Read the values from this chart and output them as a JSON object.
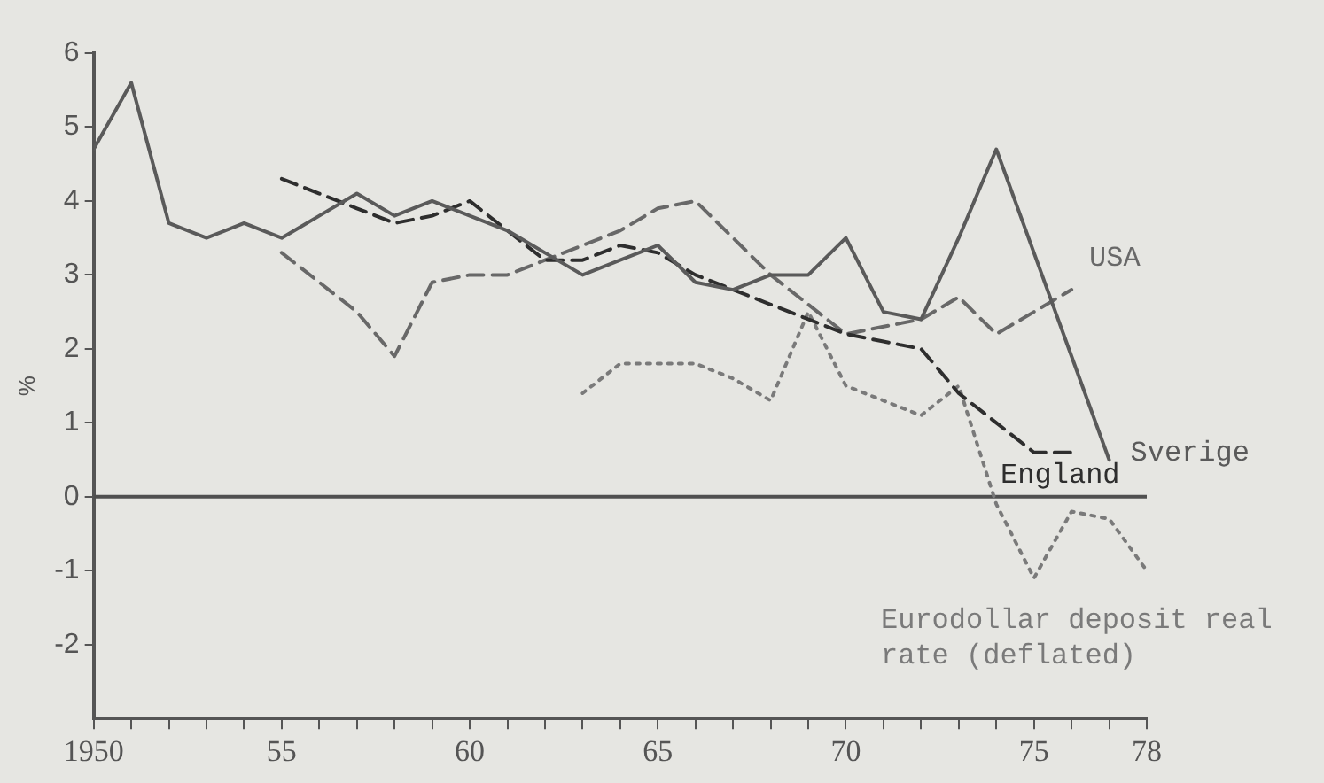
{
  "chart_data": {
    "type": "line",
    "ylabel": "%",
    "x": [
      1950,
      1951,
      1952,
      1953,
      1954,
      1955,
      1956,
      1957,
      1958,
      1959,
      1960,
      1961,
      1962,
      1963,
      1964,
      1965,
      1966,
      1967,
      1968,
      1969,
      1970,
      1971,
      1972,
      1973,
      1974,
      1975,
      1976,
      1977,
      1978
    ],
    "series": [
      {
        "name": "Sverige",
        "color": "#5a5a5a",
        "line_style": "solid",
        "values": [
          4.7,
          5.6,
          3.7,
          3.5,
          3.7,
          3.5,
          3.8,
          4.1,
          3.8,
          4.0,
          3.8,
          3.6,
          3.3,
          3.0,
          3.2,
          3.4,
          2.9,
          2.8,
          3.0,
          3.0,
          3.5,
          2.5,
          2.4,
          3.5,
          4.7,
          3.3,
          1.9,
          0.5,
          null
        ]
      },
      {
        "name": "England",
        "color": "#2e2e2e",
        "line_style": "dashed",
        "values": [
          null,
          null,
          null,
          null,
          null,
          4.3,
          4.1,
          3.9,
          3.7,
          3.8,
          4.0,
          3.6,
          3.2,
          3.2,
          3.4,
          3.3,
          3.0,
          2.8,
          2.6,
          2.4,
          2.2,
          2.1,
          2.0,
          1.4,
          1.0,
          0.6,
          0.6,
          null,
          null
        ]
      },
      {
        "name": "USA",
        "color": "#686868",
        "line_style": "dashed",
        "values": [
          null,
          null,
          null,
          null,
          null,
          3.3,
          2.9,
          2.5,
          1.9,
          2.9,
          3.0,
          3.0,
          3.2,
          3.4,
          3.6,
          3.9,
          4.0,
          3.5,
          3.0,
          2.6,
          2.2,
          2.3,
          2.4,
          2.7,
          2.2,
          2.5,
          2.8,
          null,
          null
        ]
      },
      {
        "name": "Eurodollar deposit real rate (deflated)",
        "color": "#7a7a7a",
        "line_style": "dotted",
        "values": [
          null,
          null,
          null,
          null,
          null,
          null,
          null,
          null,
          null,
          null,
          null,
          null,
          null,
          1.4,
          1.8,
          1.8,
          1.8,
          1.6,
          1.3,
          2.5,
          1.5,
          1.3,
          1.1,
          1.5,
          -0.1,
          -1.1,
          -0.2,
          -0.3,
          -1.0
        ]
      }
    ],
    "xlim": [
      1950,
      1978
    ],
    "xticks": [
      {
        "value": 1950,
        "label": "1950"
      },
      {
        "value": 1951,
        "label": null
      },
      {
        "value": 1952,
        "label": null
      },
      {
        "value": 1953,
        "label": null
      },
      {
        "value": 1954,
        "label": null
      },
      {
        "value": 1955,
        "label": "55"
      },
      {
        "value": 1956,
        "label": null
      },
      {
        "value": 1957,
        "label": null
      },
      {
        "value": 1958,
        "label": null
      },
      {
        "value": 1959,
        "label": null
      },
      {
        "value": 1960,
        "label": "60"
      },
      {
        "value": 1961,
        "label": null
      },
      {
        "value": 1962,
        "label": null
      },
      {
        "value": 1963,
        "label": null
      },
      {
        "value": 1964,
        "label": null
      },
      {
        "value": 1965,
        "label": "65"
      },
      {
        "value": 1966,
        "label": null
      },
      {
        "value": 1967,
        "label": null
      },
      {
        "value": 1968,
        "label": null
      },
      {
        "value": 1969,
        "label": null
      },
      {
        "value": 1970,
        "label": "70"
      },
      {
        "value": 1971,
        "label": null
      },
      {
        "value": 1972,
        "label": null
      },
      {
        "value": 1973,
        "label": null
      },
      {
        "value": 1974,
        "label": null
      },
      {
        "value": 1975,
        "label": "75"
      },
      {
        "value": 1976,
        "label": null
      },
      {
        "value": 1977,
        "label": null
      },
      {
        "value": 1978,
        "label": "78"
      }
    ],
    "ylim": [
      -3,
      6
    ],
    "yticks": [
      -2,
      -1,
      0,
      1,
      2,
      3,
      4,
      5,
      6
    ],
    "ref_lines": [
      {
        "axis": "y",
        "value": 0,
        "color": "#505050"
      }
    ],
    "grid": false,
    "legend": false,
    "marker": "none"
  }
}
